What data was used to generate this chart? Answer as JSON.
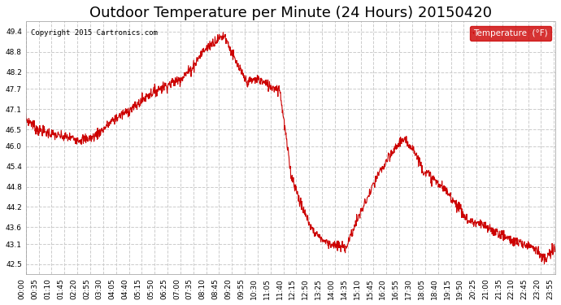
{
  "title": "Outdoor Temperature per Minute (24 Hours) 20150420",
  "copyright_text": "Copyright 2015 Cartronics.com",
  "legend_label": "Temperature  (°F)",
  "legend_bg": "#cc0000",
  "legend_fg": "#ffffff",
  "line_color": "#cc0000",
  "background_color": "#ffffff",
  "plot_bg": "#ffffff",
  "grid_color": "#cccccc",
  "grid_style": "--",
  "ylim": [
    42.2,
    49.7
  ],
  "yticks": [
    42.5,
    43.1,
    43.6,
    44.2,
    44.8,
    45.4,
    46.0,
    46.5,
    47.1,
    47.7,
    48.2,
    48.8,
    49.4
  ],
  "title_fontsize": 13,
  "tick_fontsize": 6.5,
  "xlabel_rotation": 90
}
